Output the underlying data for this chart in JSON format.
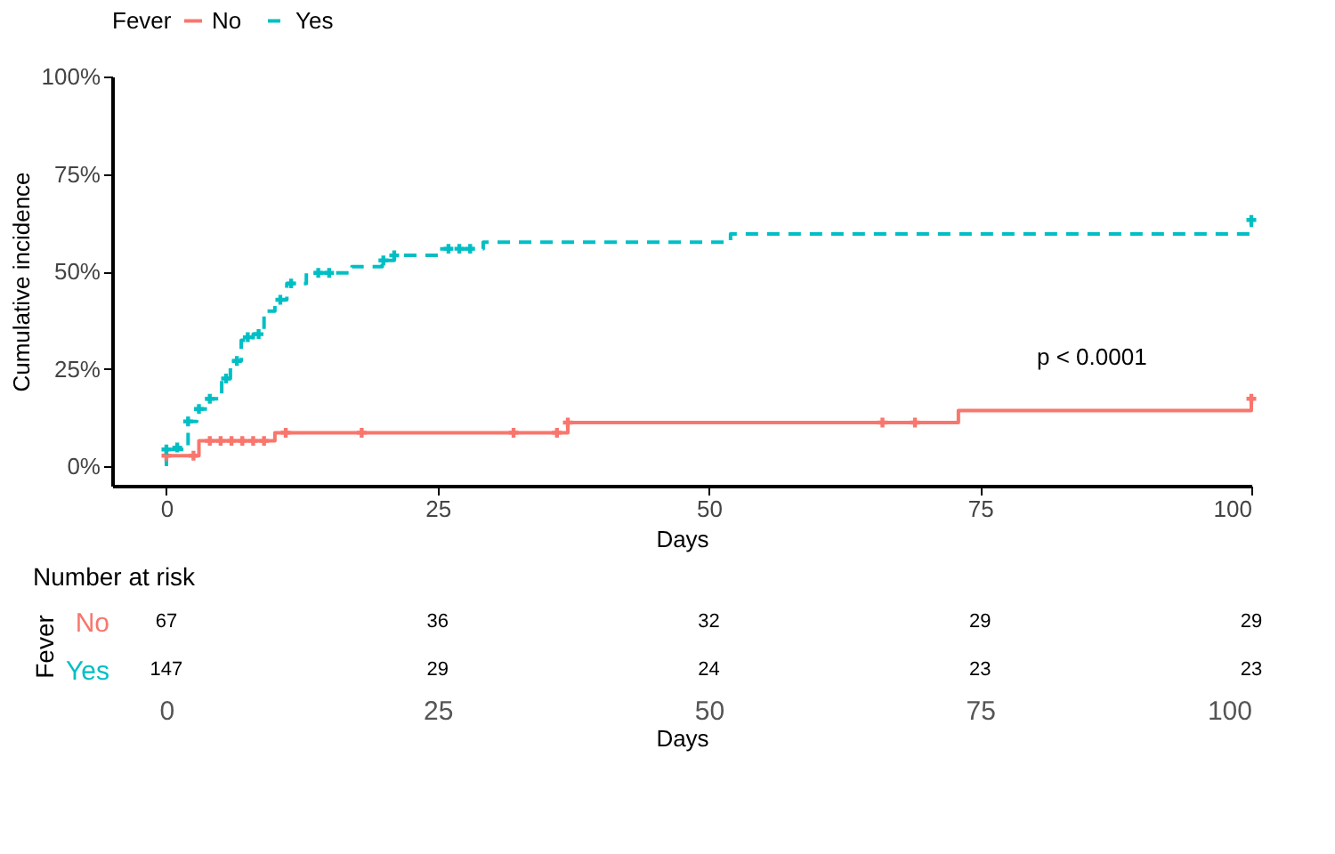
{
  "chart_data": [
    {
      "type": "step",
      "xlabel": "Days",
      "ylabel": "Cumulative incidence",
      "legend_title": "Fever",
      "legend": "top",
      "grid": false,
      "xlim": [
        -5,
        100
      ],
      "xticks": [
        0,
        25,
        50,
        75,
        100
      ],
      "ylim": [
        -5,
        100
      ],
      "yticks": [
        {
          "value": 0,
          "label": "0%"
        },
        {
          "value": 25,
          "label": "25%"
        },
        {
          "value": 50,
          "label": "50%"
        },
        {
          "value": 75,
          "label": "75%"
        },
        {
          "value": 100,
          "label": "100%"
        }
      ],
      "annotations": [
        "p < 0.0001"
      ],
      "series": [
        {
          "name": "No",
          "type": "step",
          "color": "#f8766d",
          "line_style": "solid",
          "x": [
            0,
            3,
            10,
            37,
            73,
            100,
            100
          ],
          "values": [
            2.7,
            6.5,
            8.6,
            11.2,
            14.3,
            14.3,
            17.3
          ]
        },
        {
          "name": "Yes",
          "type": "step",
          "color": "#00bfc4",
          "line_style": "dashed",
          "x": [
            0,
            0,
            2,
            2.8,
            3.8,
            5.1,
            5.9,
            6.9,
            8,
            9,
            10,
            11.1,
            12.9,
            17.1,
            19.9,
            21,
            25.1,
            29.2,
            52,
            100,
            100
          ],
          "values": [
            0,
            4.3,
            11.5,
            14.7,
            17.3,
            22.5,
            27,
            32.3,
            33.9,
            39.8,
            42.7,
            46.9,
            49.6,
            51.2,
            52.8,
            54.1,
            55.8,
            57.5,
            59.6,
            59.6,
            63.2
          ]
        },
        {
          "type": "scatter",
          "marker": "cross",
          "color": "#f8766d",
          "x": [
            0,
            2.5,
            4,
            5,
            6,
            7,
            8,
            9,
            11,
            18,
            32,
            36,
            37,
            66,
            69,
            100
          ],
          "values": [
            2.7,
            2.7,
            6.5,
            6.5,
            6.5,
            6.5,
            6.5,
            6.5,
            8.6,
            8.6,
            8.6,
            8.6,
            11.2,
            11.2,
            11.2,
            17.3
          ]
        },
        {
          "type": "scatter",
          "marker": "cross",
          "color": "#00bfc4",
          "x": [
            0,
            1,
            2,
            3,
            4,
            5.5,
            6.5,
            7.5,
            8.5,
            10.5,
            11.5,
            14,
            15,
            20,
            21,
            26,
            27,
            28,
            100
          ],
          "values": [
            4.3,
            4.8,
            11.5,
            14.7,
            17.3,
            22.5,
            27,
            33.1,
            33.9,
            42.7,
            46.9,
            49.6,
            49.6,
            52.8,
            54.1,
            55.8,
            55.8,
            55.8,
            63.2
          ]
        }
      ]
    },
    {
      "type": "heatmap",
      "data_labels": true,
      "title": "Number at risk",
      "ylabel": "Fever",
      "xlabel": "Days",
      "categories": [
        "0",
        "25",
        "50",
        "75",
        "100"
      ],
      "y_categories": [
        "No",
        "Yes"
      ],
      "cells": [
        [
          67,
          36,
          32,
          29,
          29
        ],
        [
          147,
          29,
          24,
          23,
          23
        ]
      ]
    }
  ]
}
